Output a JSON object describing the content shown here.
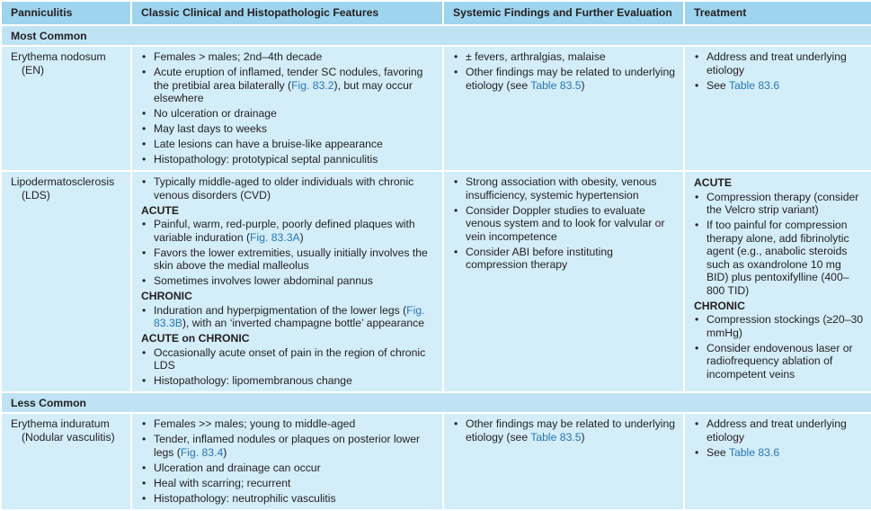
{
  "headers": [
    "Panniculitis",
    "Classic Clinical and Histopathologic Features",
    "Systemic Findings and Further Evaluation",
    "Treatment"
  ],
  "rows": [
    {
      "section": "Most Common"
    },
    {
      "name": "Erythema nodosum (EN)",
      "cols": [
        [
          {
            "items": [
              [
                {
                  "t": "Females > males; 2nd–4th decade"
                }
              ],
              [
                {
                  "t": "Acute eruption of inflamed, tender SC nodules, favoring the pretibial area bilaterally ("
                },
                {
                  "l": "Fig. 83.2"
                },
                {
                  "t": "), but may occur elsewhere"
                }
              ],
              [
                {
                  "t": "No ulceration or drainage"
                }
              ],
              [
                {
                  "t": "May last days to weeks"
                }
              ],
              [
                {
                  "t": "Late lesions can have a bruise-like appearance"
                }
              ],
              [
                {
                  "t": "Histopathology: prototypical septal panniculitis"
                }
              ]
            ]
          }
        ],
        [
          {
            "items": [
              [
                {
                  "t": "± fevers, arthralgias, malaise"
                }
              ],
              [
                {
                  "t": "Other findings may be related to underlying etiology (see "
                },
                {
                  "l": "Table 83.5"
                },
                {
                  "t": ")"
                }
              ]
            ]
          }
        ],
        [
          {
            "items": [
              [
                {
                  "t": "Address and treat underlying etiology"
                }
              ],
              [
                {
                  "t": "See "
                },
                {
                  "l": "Table 83.6"
                }
              ]
            ]
          }
        ]
      ]
    },
    {
      "name": "Lipodermatosclerosis (LDS)",
      "cols": [
        [
          {
            "items": [
              [
                {
                  "t": "Typically middle-aged to older individuals with chronic venous disorders (CVD)"
                }
              ]
            ]
          },
          {
            "heading": "ACUTE",
            "items": [
              [
                {
                  "t": "Painful, warm, red-purple, poorly defined plaques with variable induration ("
                },
                {
                  "l": "Fig. 83.3A"
                },
                {
                  "t": ")"
                }
              ],
              [
                {
                  "t": "Favors the lower extremities, usually initially involves the skin above the medial malleolus"
                }
              ],
              [
                {
                  "t": "Sometimes involves lower abdominal pannus"
                }
              ]
            ]
          },
          {
            "heading": "CHRONIC",
            "items": [
              [
                {
                  "t": "Induration and hyperpigmentation of the lower legs ("
                },
                {
                  "l": "Fig. 83.3B"
                },
                {
                  "t": "), with an ‘inverted champagne bottle’ appearance"
                }
              ]
            ]
          },
          {
            "heading": "ACUTE on CHRONIC",
            "items": [
              [
                {
                  "t": "Occasionally acute onset of pain in the region of chronic LDS"
                }
              ],
              [
                {
                  "t": "Histopathology: lipomembranous change"
                }
              ]
            ]
          }
        ],
        [
          {
            "items": [
              [
                {
                  "t": "Strong association with obesity, venous insufficiency, systemic hypertension"
                }
              ],
              [
                {
                  "t": "Consider Doppler studies to evaluate venous system and to look for valvular or vein incompetence"
                }
              ],
              [
                {
                  "t": "Consider ABI before instituting compression therapy"
                }
              ]
            ]
          }
        ],
        [
          {
            "heading": "ACUTE",
            "items": [
              [
                {
                  "t": "Compression therapy (consider the Velcro strip variant)"
                }
              ],
              [
                {
                  "t": "If too painful for compression therapy alone, add fibrinolytic agent (e.g., anabolic steroids such as oxandrolone 10 mg BID) plus pentoxifylline (400–800 TID)"
                }
              ]
            ]
          },
          {
            "heading": "CHRONIC",
            "items": [
              [
                {
                  "t": "Compression stockings (≥20–30 mmHg)"
                }
              ],
              [
                {
                  "t": "Consider endovenous laser or radiofrequency ablation of incompetent veins"
                }
              ]
            ]
          }
        ]
      ]
    },
    {
      "section": "Less Common"
    },
    {
      "name": "Erythema induratum (Nodular vasculitis)",
      "cols": [
        [
          {
            "items": [
              [
                {
                  "t": "Females >> males; young to middle-aged"
                }
              ],
              [
                {
                  "t": "Tender, inflamed nodules or plaques on posterior lower legs ("
                },
                {
                  "l": "Fig. 83.4"
                },
                {
                  "t": ")"
                }
              ],
              [
                {
                  "t": "Ulceration and drainage can occur"
                }
              ],
              [
                {
                  "t": "Heal with scarring; recurrent"
                }
              ],
              [
                {
                  "t": "Histopathology: neutrophilic vasculitis"
                }
              ]
            ]
          }
        ],
        [
          {
            "items": [
              [
                {
                  "t": "Other findings may be related to underlying etiology (see "
                },
                {
                  "l": "Table 83.5"
                },
                {
                  "t": ")"
                }
              ]
            ]
          }
        ],
        [
          {
            "items": [
              [
                {
                  "t": "Address and treat underlying etiology"
                }
              ],
              [
                {
                  "t": "See "
                },
                {
                  "l": "Table 83.6"
                }
              ]
            ]
          }
        ]
      ]
    }
  ]
}
